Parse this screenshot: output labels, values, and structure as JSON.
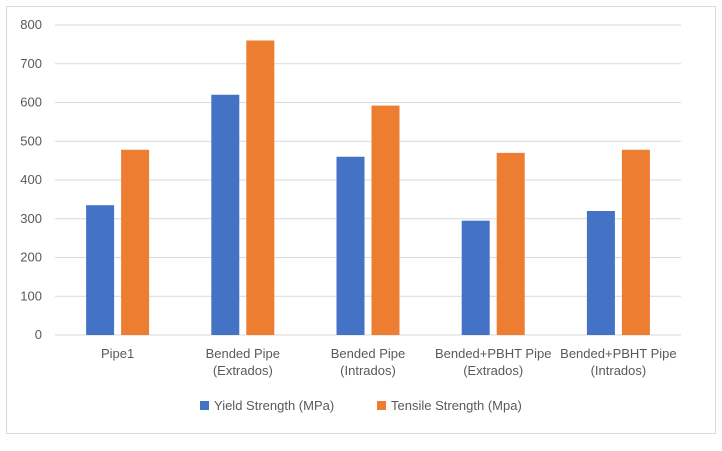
{
  "chart_data": {
    "type": "bar",
    "title": "",
    "xlabel": "",
    "ylabel": "",
    "ylim": [
      0,
      800
    ],
    "yticks": [
      0,
      100,
      200,
      300,
      400,
      500,
      600,
      700,
      800
    ],
    "grid": true,
    "legend_position": "bottom",
    "categories": [
      [
        "Pipe1"
      ],
      [
        "Bended Pipe",
        "(Extrados)"
      ],
      [
        "Bended Pipe",
        "(Intrados)"
      ],
      [
        "Bended+PBHT Pipe",
        "(Extrados)"
      ],
      [
        "Bended+PBHT Pipe",
        "(Intrados)"
      ]
    ],
    "series": [
      {
        "name": "Yield Strength (MPa)",
        "color": "#4472c4",
        "values": [
          335,
          620,
          460,
          295,
          320
        ]
      },
      {
        "name": "Tensile Strength (Mpa)",
        "color": "#ed7d31",
        "values": [
          478,
          760,
          592,
          470,
          478
        ]
      }
    ]
  }
}
